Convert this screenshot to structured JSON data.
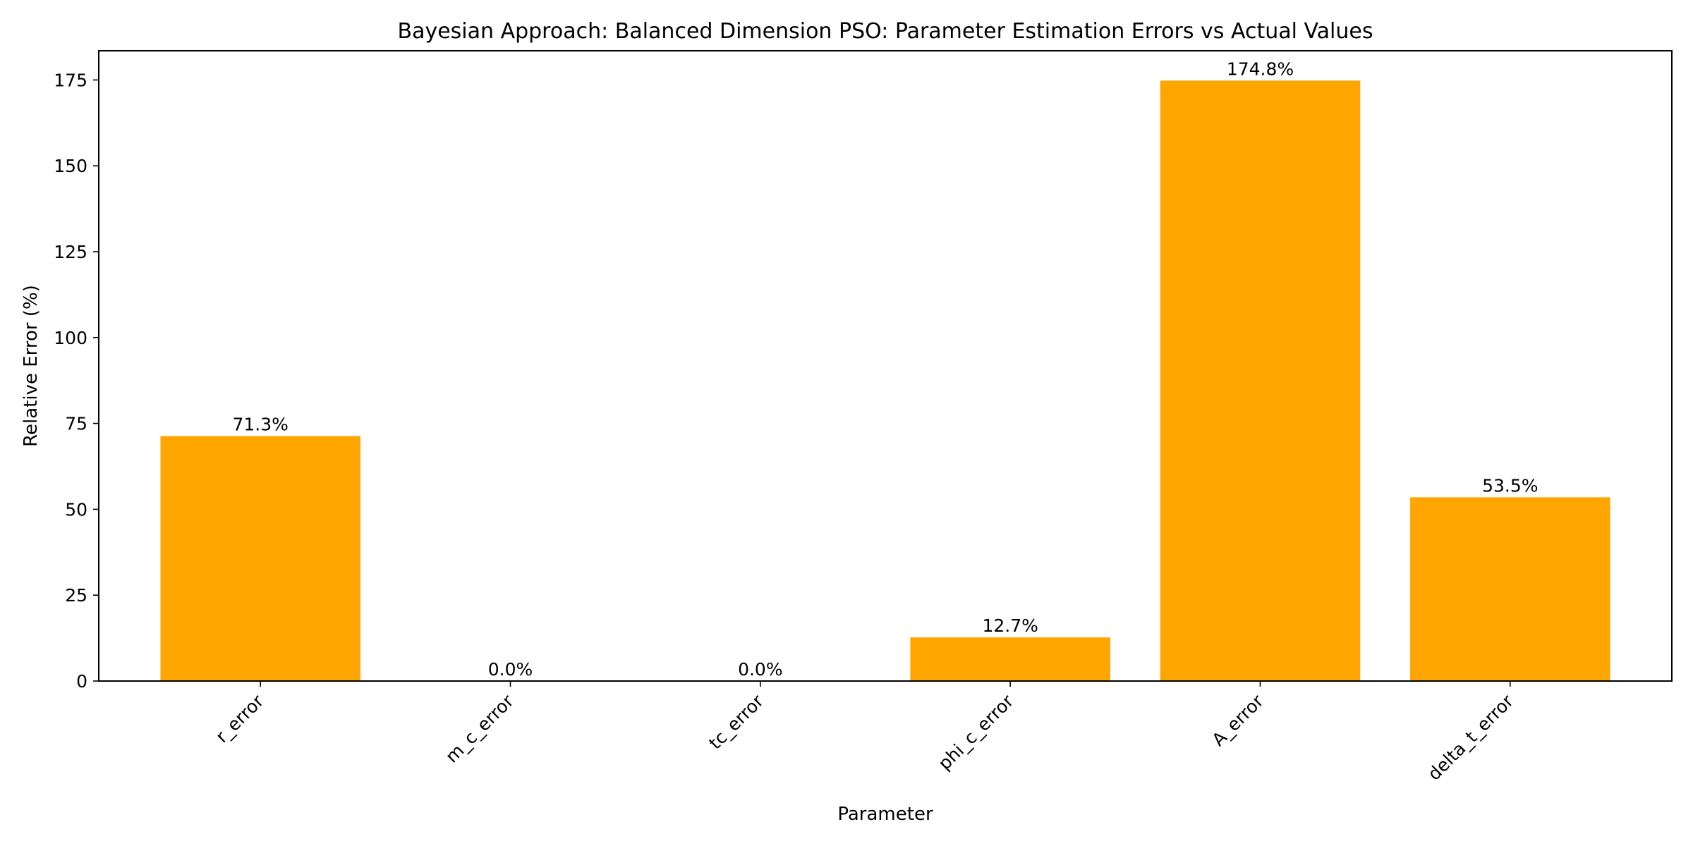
{
  "chart_data": {
    "type": "bar",
    "title": "Bayesian Approach: Balanced Dimension PSO: Parameter Estimation Errors vs Actual Values",
    "xlabel": "Parameter",
    "ylabel": "Relative Error (%)",
    "categories": [
      "r_error",
      "m_c_error",
      "tc_error",
      "phi_c_error",
      "A_error",
      "delta_t_error"
    ],
    "values": [
      71.3,
      0.0,
      0.0,
      12.7,
      174.8,
      53.5
    ],
    "data_labels": [
      "71.3%",
      "0.0%",
      "0.0%",
      "12.7%",
      "174.8%",
      "53.5%"
    ],
    "ylim": [
      0,
      183.5
    ],
    "yticks": [
      0,
      25,
      50,
      75,
      100,
      125,
      150,
      175
    ],
    "ytick_labels": [
      "0",
      "25",
      "50",
      "75",
      "100",
      "125",
      "150",
      "175"
    ],
    "xtick_rotation_deg": 45,
    "grid": false,
    "legend": "none",
    "bar_color": "#ffa500"
  }
}
